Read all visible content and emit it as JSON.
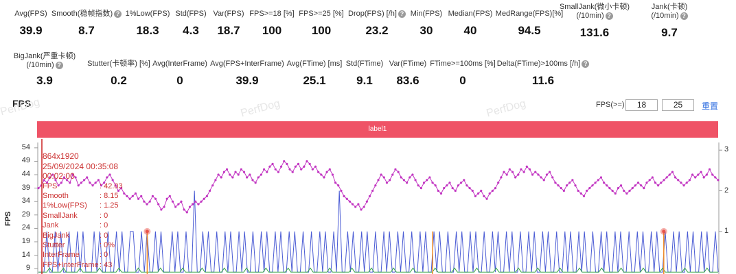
{
  "metrics_row1": [
    {
      "label": "Avg(FPS)",
      "value": "39.9"
    },
    {
      "label": "Smooth(稳帧指数)",
      "value": "8.7",
      "help": true
    },
    {
      "label": "1%Low(FPS)",
      "value": "18.3"
    },
    {
      "label": "Std(FPS)",
      "value": "4.3"
    },
    {
      "label": "Var(FPS)",
      "value": "18.7"
    },
    {
      "label": "FPS>=18 [%]",
      "value": "100"
    },
    {
      "label": "FPS>=25 [%]",
      "value": "100"
    },
    {
      "label": "Drop(FPS) [/h]",
      "value": "23.2",
      "help": true
    },
    {
      "label": "Min(FPS)",
      "value": "30"
    },
    {
      "label": "Median(FPS)",
      "value": "40"
    },
    {
      "label": "MedRange(FPS)[%]",
      "value": "94.5"
    },
    {
      "label": "SmallJank(微小卡顿)",
      "label2": "(/10min)",
      "value": "131.6",
      "help": true
    },
    {
      "label": "Jank(卡顿)",
      "label2": "(/10min)",
      "value": "9.7",
      "help": true
    }
  ],
  "metrics_row2": [
    {
      "label": "BigJank(严重卡顿)",
      "label2": "(/10min)",
      "value": "3.9",
      "help": true
    },
    {
      "label": "Stutter(卡顿率) [%]",
      "value": "0.2"
    },
    {
      "label": "Avg(InterFrame)",
      "value": "0"
    },
    {
      "label": "Avg(FPS+InterFrame)",
      "value": "39.9"
    },
    {
      "label": "Avg(FTime) [ms]",
      "value": "25.1"
    },
    {
      "label": "Std(FTime)",
      "value": "9.1"
    },
    {
      "label": "Var(FTime)",
      "value": "83.6"
    },
    {
      "label": "FTime>=100ms [%]",
      "value": "0"
    },
    {
      "label": "Delta(FTime)>100ms [/h]",
      "value": "11.6",
      "help": true
    }
  ],
  "help_glyph": "?",
  "section": {
    "title": "FPS",
    "threshold_label": "FPS(>=)",
    "threshold_1": "18",
    "threshold_2": "25",
    "reset_label": "重置",
    "label_bar": "label1",
    "watermark": "PerfDog"
  },
  "tooltip": {
    "resolution": "864x1920",
    "datetime": "25/09/2024 00:35:08",
    "elapsed": "00:02:00",
    "rows": [
      {
        "k": "FPS",
        "v": ": 42.03"
      },
      {
        "k": "Smooth",
        "v": ": 8.15"
      },
      {
        "k": "1%Low(FPS)",
        "v": ": 1.25"
      },
      {
        "k": "SmallJank",
        "v": ": 0"
      },
      {
        "k": "Jank",
        "v": ": 0"
      },
      {
        "k": "BigJank",
        "v": ": 0"
      },
      {
        "k": "Stutter",
        "v": ": 0%"
      },
      {
        "k": "InterFrame",
        "v": ": 0"
      },
      {
        "k": "FPS+InterFrame",
        "v": ": 43"
      }
    ]
  },
  "chart_data": {
    "type": "line",
    "ylabel": "FPS",
    "y_ticks": [
      54,
      49,
      44,
      39,
      34,
      29,
      24,
      19,
      14,
      9
    ],
    "y2_ticks": [
      3,
      2,
      1
    ],
    "ylim": [
      7,
      56
    ],
    "y2lim": [
      0.02,
      3.02
    ],
    "colors": {
      "fps": "#c236c2",
      "jank": "#4a5bd4",
      "green": "#3aa64a",
      "orange": "#f08a24",
      "marker": "#e8534a"
    },
    "series": [
      {
        "values": [
          39,
          40,
          42,
          41,
          43,
          44,
          42,
          40,
          41,
          43,
          42,
          41,
          44,
          43,
          40,
          41,
          42,
          43,
          41,
          40,
          41,
          42,
          40,
          41,
          43,
          44,
          42,
          40,
          38,
          39,
          37,
          36,
          35,
          36,
          37,
          35,
          36,
          34,
          33,
          34,
          36,
          35,
          33,
          31,
          32,
          35,
          36,
          34,
          32,
          33,
          34,
          31,
          30,
          32,
          33,
          34,
          33,
          34,
          35,
          36,
          38,
          40,
          42,
          44,
          43,
          45,
          46,
          44,
          43,
          45,
          44,
          46,
          45,
          43,
          44,
          42,
          41,
          43,
          44,
          46,
          45,
          47,
          48,
          46,
          45,
          47,
          49,
          48,
          46,
          45,
          47,
          48,
          46,
          47,
          49,
          48,
          46,
          47,
          45,
          44,
          43,
          45,
          46,
          44,
          41,
          40,
          38,
          36,
          35,
          34,
          33,
          32,
          33,
          31,
          32,
          34,
          36,
          38,
          40,
          42,
          44,
          43,
          41,
          42,
          44,
          46,
          45,
          43,
          42,
          41,
          43,
          44,
          42,
          40,
          39,
          41,
          42,
          43,
          41,
          40,
          38,
          37,
          39,
          40,
          41,
          39,
          38,
          40,
          41,
          42,
          40,
          39,
          38,
          36,
          37,
          38,
          36,
          35,
          37,
          38,
          39,
          41,
          43,
          45,
          44,
          46,
          45,
          43,
          44,
          46,
          45,
          47,
          46,
          44,
          45,
          44,
          43,
          42,
          44,
          45,
          43,
          41,
          40,
          39,
          38,
          40,
          41,
          42,
          40,
          38,
          37,
          36,
          38,
          39,
          40,
          41,
          42,
          43,
          41,
          40,
          39,
          38,
          37,
          39,
          40,
          38,
          37,
          38,
          39,
          40,
          41,
          40,
          39,
          41,
          42,
          43,
          41,
          40,
          41,
          42,
          43,
          44,
          45,
          43,
          42,
          41,
          40,
          41,
          42,
          44,
          43,
          44,
          45,
          43,
          44,
          46,
          44,
          43,
          42
        ]
      },
      {
        "values": [
          0,
          0,
          0,
          1,
          0,
          0,
          1,
          0,
          1,
          0,
          0,
          1,
          0,
          0,
          1,
          0,
          1,
          0,
          0,
          0,
          1,
          0,
          1,
          0,
          0,
          1,
          0,
          0,
          1,
          0,
          1,
          0,
          0,
          1,
          1,
          0,
          0,
          1,
          0,
          1,
          0,
          0,
          1,
          0,
          1,
          0,
          0,
          0,
          1,
          0,
          1,
          0,
          0,
          1,
          0,
          0,
          2,
          0,
          0,
          1,
          0,
          1,
          0,
          0,
          1,
          0,
          0,
          1,
          0,
          1,
          0,
          0,
          1,
          0,
          1,
          0,
          0,
          1,
          0,
          0,
          1,
          0,
          1,
          0,
          0,
          1,
          0,
          1,
          0,
          0,
          1,
          0,
          1,
          0,
          0,
          1,
          0,
          0,
          1,
          0,
          0,
          1,
          0,
          1,
          0,
          0,
          1,
          0,
          2,
          0,
          0,
          1,
          0,
          1,
          0,
          0,
          1,
          0,
          1,
          0,
          0,
          1,
          0,
          0,
          1,
          0,
          1,
          0,
          0,
          1,
          0,
          1,
          0,
          0,
          1,
          0,
          0,
          1,
          0,
          1,
          0,
          0,
          1,
          0,
          1,
          0,
          0,
          1,
          0,
          0,
          1,
          0,
          1,
          0,
          0,
          1,
          0,
          1,
          0,
          0,
          1,
          0,
          0,
          1,
          0,
          1,
          0,
          0,
          1,
          0,
          1,
          0,
          0,
          1,
          0,
          0,
          1,
          0,
          1,
          0,
          0,
          1,
          0,
          1,
          0,
          0,
          1,
          0,
          0,
          1,
          0,
          1,
          0,
          0,
          1,
          0,
          1,
          0,
          0,
          1,
          0,
          0,
          1,
          0,
          1,
          0,
          0,
          1,
          0,
          1,
          0,
          0,
          1,
          0,
          0,
          1,
          0,
          1,
          0,
          0,
          1,
          0,
          1,
          0,
          0,
          1,
          0,
          0,
          1,
          0,
          1,
          0,
          0,
          1,
          0,
          1,
          0,
          0,
          1,
          0,
          1,
          0,
          0,
          1,
          0
        ]
      },
      {
        "values": [
          0,
          0,
          0,
          0,
          0.1,
          0,
          0,
          0,
          0,
          0.1,
          0,
          0,
          0,
          0,
          0,
          0.1,
          0,
          0,
          0,
          0,
          0,
          0,
          0.1,
          0,
          0,
          0,
          0,
          0,
          0,
          0.1,
          0,
          0,
          0,
          0,
          0,
          0,
          0.1,
          0,
          0,
          0,
          0,
          0,
          0,
          0,
          0.1,
          0,
          0,
          0,
          0,
          0,
          0,
          0,
          0.1,
          0,
          0,
          0,
          0,
          0,
          0,
          0.1,
          0,
          0,
          0,
          0,
          0,
          0,
          0,
          0.1,
          0,
          0,
          0,
          0,
          0,
          0,
          0,
          0.1,
          0,
          0,
          0,
          0,
          0,
          0,
          0.1,
          0,
          0,
          0,
          0,
          0,
          0,
          0,
          0.1,
          0,
          0,
          0,
          0,
          0,
          0,
          0,
          0.1,
          0,
          0,
          0,
          0,
          0,
          0,
          0.1,
          0,
          0,
          0,
          0,
          0,
          0,
          0,
          0.1,
          0,
          0,
          0,
          0,
          0,
          0,
          0.1,
          0,
          0,
          0,
          0,
          0,
          0,
          0,
          0.1,
          0,
          0,
          0,
          0,
          0,
          0,
          0.1,
          0,
          0,
          0,
          0,
          0,
          0,
          0,
          0.1,
          0,
          0,
          0,
          0,
          0,
          0,
          0.1,
          0,
          0,
          0,
          0,
          0,
          0,
          0,
          0.1,
          0,
          0,
          0,
          0,
          0,
          0,
          0.1,
          0,
          0,
          0,
          0,
          0,
          0,
          0,
          0.1,
          0,
          0,
          0,
          0,
          0,
          0,
          0.1,
          0,
          0,
          0,
          0,
          0,
          0,
          0,
          0.1,
          0,
          0,
          0,
          0,
          0,
          0,
          0.1,
          0,
          0,
          0,
          0,
          0,
          0,
          0,
          0.1,
          0,
          0,
          0,
          0,
          0,
          0,
          0.1,
          0,
          0,
          0,
          0,
          0,
          0,
          0,
          0.1,
          0,
          0,
          0,
          0,
          0,
          0,
          0.1,
          0,
          0,
          0,
          0,
          0,
          0,
          0,
          0.1,
          0,
          0,
          0,
          0,
          0,
          0,
          0,
          0.1,
          0,
          0,
          0,
          0
        ]
      }
    ],
    "orange_markers": [
      [
        0.16,
        1
      ],
      [
        0.58,
        1
      ],
      [
        0.92,
        1
      ]
    ],
    "big_markers": [
      0.16,
      0.92
    ]
  }
}
